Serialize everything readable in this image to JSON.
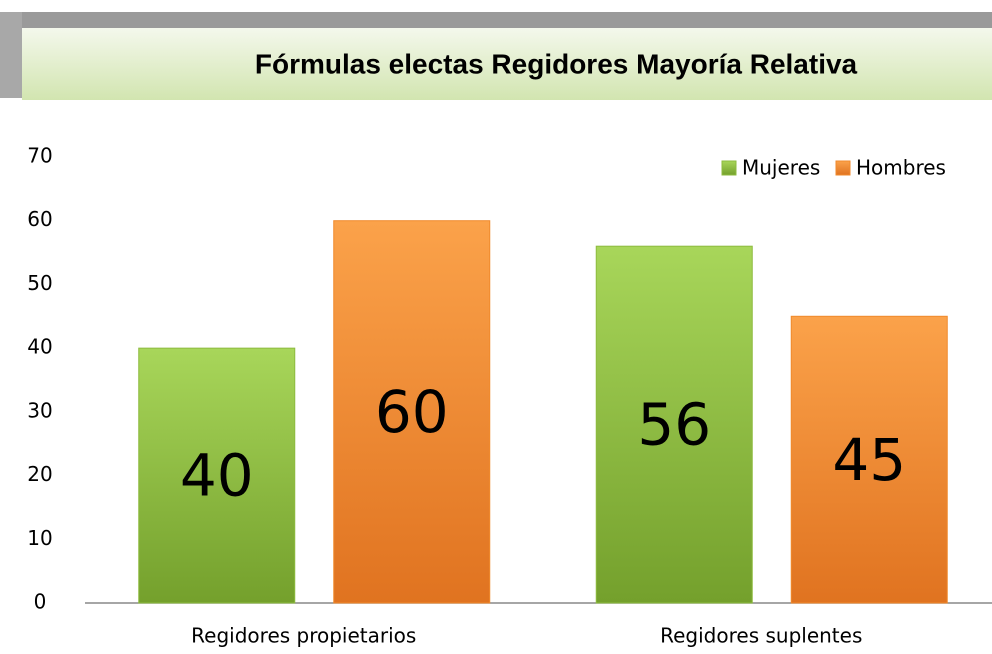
{
  "chart_data": {
    "type": "bar",
    "title": "Fórmulas electas Regidores Mayoría Relativa",
    "categories": [
      "Regidores propietarios",
      "Regidores suplentes"
    ],
    "series": [
      {
        "name": "Mujeres",
        "color": "#8dbb3f",
        "values": [
          40,
          56
        ]
      },
      {
        "name": "Hombres",
        "color": "#f08a2c",
        "values": [
          60,
          45
        ]
      }
    ],
    "ylim": [
      0,
      70
    ],
    "yticks": [
      0,
      10,
      20,
      30,
      40,
      50,
      60,
      70
    ],
    "grid": false,
    "legend": "top-right",
    "data_labels": true
  }
}
